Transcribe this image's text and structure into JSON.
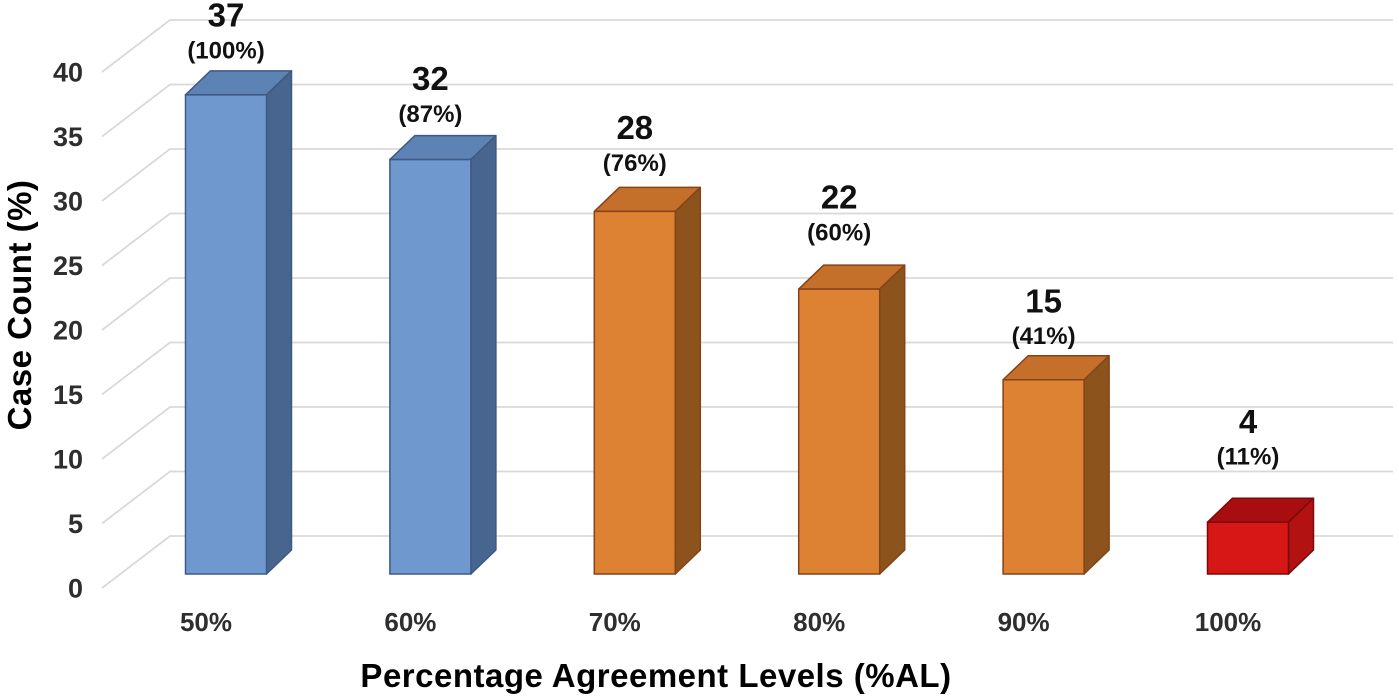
{
  "chart_data": {
    "type": "bar",
    "style": "3d-column",
    "title": "",
    "xlabel": "Percentage Agreement Levels (%AL)",
    "ylabel": "Case Count (%)",
    "categories": [
      "50%",
      "60%",
      "70%",
      "80%",
      "90%",
      "100%"
    ],
    "values": [
      37,
      32,
      28,
      22,
      15,
      4
    ],
    "percent_labels": [
      "(100%)",
      "(87%)",
      "(76%)",
      "(60%)",
      "(41%)",
      "(11%)"
    ],
    "y_ticks": [
      0,
      5,
      10,
      15,
      20,
      25,
      30,
      35,
      40
    ],
    "ylim": [
      0,
      40
    ],
    "grid": true,
    "legend": "none",
    "colors": {
      "background": "#ffffff",
      "gridline": "#d9d9d9",
      "tick_text": "#2e2e2e",
      "category_text": "#2e2e2e",
      "data_label_text": "#111111",
      "axis_title_text": "#000000",
      "palettes": {
        "blue": {
          "front": "#6f98ce",
          "top": "#5d83b4",
          "side": "#47658f",
          "stroke": "#3c5a84"
        },
        "orange": {
          "front": "#dd8233",
          "top": "#c4702a",
          "side": "#8d531d",
          "stroke": "#84431a"
        },
        "red": {
          "front": "#d71616",
          "top": "#a80e0f",
          "side": "#b31212",
          "stroke": "#7c0909"
        }
      },
      "bar_palette": [
        "blue",
        "blue",
        "orange",
        "orange",
        "orange",
        "red"
      ]
    }
  }
}
